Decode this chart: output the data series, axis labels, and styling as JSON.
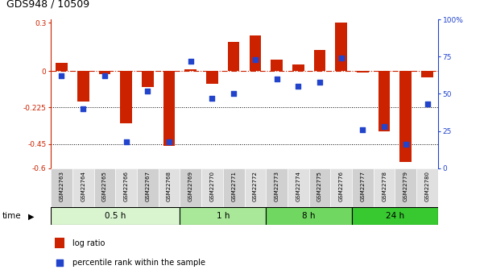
{
  "title": "GDS948 / 10509",
  "samples": [
    "GSM22763",
    "GSM22764",
    "GSM22765",
    "GSM22766",
    "GSM22767",
    "GSM22768",
    "GSM22769",
    "GSM22770",
    "GSM22771",
    "GSM22772",
    "GSM22773",
    "GSM22774",
    "GSM22775",
    "GSM22776",
    "GSM22777",
    "GSM22778",
    "GSM22779",
    "GSM22780"
  ],
  "log_ratio": [
    0.05,
    -0.19,
    -0.02,
    -0.32,
    -0.1,
    -0.46,
    0.01,
    -0.08,
    0.18,
    0.22,
    0.07,
    0.04,
    0.13,
    0.3,
    -0.01,
    -0.37,
    -0.56,
    -0.04
  ],
  "percentile": [
    62,
    40,
    62,
    18,
    52,
    18,
    72,
    47,
    50,
    73,
    60,
    55,
    58,
    74,
    26,
    28,
    16,
    43
  ],
  "time_groups": [
    {
      "label": "0.5 h",
      "start": 0,
      "end": 6,
      "color": "#d8f5d0"
    },
    {
      "label": "1 h",
      "start": 6,
      "end": 10,
      "color": "#a8e898"
    },
    {
      "label": "8 h",
      "start": 10,
      "end": 14,
      "color": "#70d860"
    },
    {
      "label": "24 h",
      "start": 14,
      "end": 18,
      "color": "#38c830"
    }
  ],
  "ylim_left": [
    -0.6,
    0.32
  ],
  "ylim_right": [
    0,
    100
  ],
  "yticks_left": [
    -0.6,
    -0.45,
    -0.225,
    0.0,
    0.3
  ],
  "ytick_labels_left": [
    "-0.6",
    "-0.45",
    "-0.225",
    "0",
    "0.3"
  ],
  "yticks_right": [
    0,
    25,
    50,
    75,
    100
  ],
  "ytick_labels_right": [
    "0",
    "25",
    "50",
    "75",
    "100%"
  ],
  "bar_color": "#cc2200",
  "dot_color": "#2244cc",
  "hline_y": 0.0,
  "dotted_lines": [
    -0.225,
    -0.45
  ],
  "legend_items": [
    "log ratio",
    "percentile rank within the sample"
  ],
  "xlabel_time": "time",
  "bar_width": 0.55,
  "dot_size": 22
}
